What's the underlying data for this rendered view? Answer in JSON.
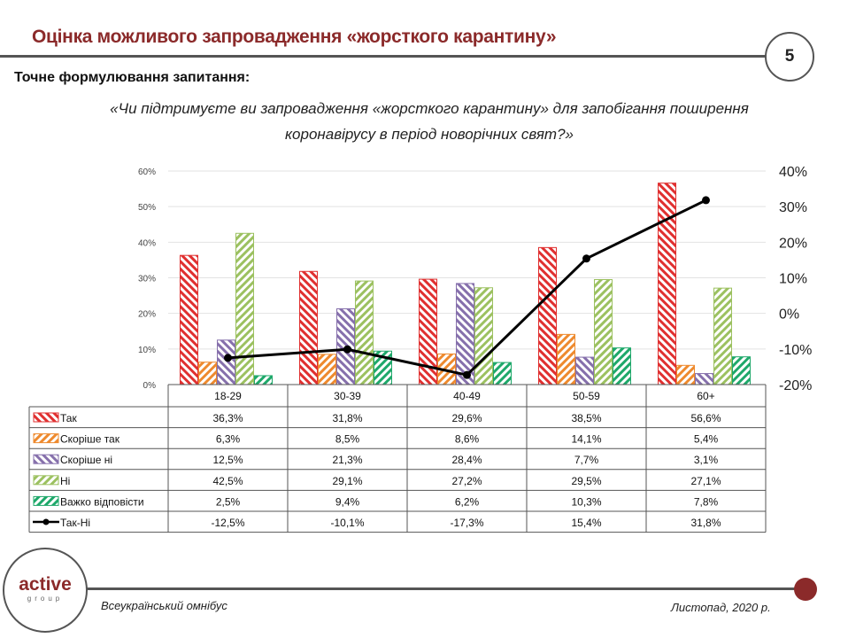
{
  "header": {
    "title": "Оцінка можливого запровадження «жорсткого карантину»",
    "page_number": "5"
  },
  "subtitle": "Точне формулювання запитання:",
  "question_line1": "«Чи підтримуєте ви запровадження «жорсткого карантину» для запобігання поширення",
  "question_line2": "коронавірусу в період новорічних свят?»",
  "footer": {
    "left": "Всеукраїнський омнібус",
    "right": "Листопад, 2020 р.",
    "logo_text": "active",
    "logo_sub": "group"
  },
  "chart_data": {
    "type": "bar",
    "categories": [
      "18-29",
      "30-39",
      "40-49",
      "50-59",
      "60+"
    ],
    "y_left": {
      "range": [
        0,
        60
      ],
      "ticks": [
        "0%",
        "10%",
        "20%",
        "30%",
        "40%",
        "50%",
        "60%"
      ]
    },
    "y_right": {
      "range": [
        -20,
        40
      ],
      "ticks": [
        "-20%",
        "-10%",
        "0%",
        "10%",
        "20%",
        "30%",
        "40%"
      ]
    },
    "grid": true,
    "series": [
      {
        "name": "Так",
        "type": "bar",
        "axis": "left",
        "color": "#e03030",
        "hatch": "back",
        "values": [
          36.3,
          31.8,
          29.6,
          38.5,
          56.6
        ],
        "labels": [
          "36,3%",
          "31,8%",
          "29,6%",
          "38,5%",
          "56,6%"
        ]
      },
      {
        "name": "Скоріше так",
        "type": "bar",
        "axis": "left",
        "color": "#ee8a2e",
        "hatch": "fwd",
        "values": [
          6.3,
          8.5,
          8.6,
          14.1,
          5.4
        ],
        "labels": [
          "6,3%",
          "8,5%",
          "8,6%",
          "14,1%",
          "5,4%"
        ]
      },
      {
        "name": "Скоріше ні",
        "type": "bar",
        "axis": "left",
        "color": "#8670ac",
        "hatch": "back",
        "values": [
          12.5,
          21.3,
          28.4,
          7.7,
          3.1
        ],
        "labels": [
          "12,5%",
          "21,3%",
          "28,4%",
          "7,7%",
          "3,1%"
        ]
      },
      {
        "name": "Ні",
        "type": "bar",
        "axis": "left",
        "color": "#9cc160",
        "hatch": "fwd",
        "values": [
          42.5,
          29.1,
          27.2,
          29.5,
          27.1
        ],
        "labels": [
          "42,5%",
          "29,1%",
          "27,2%",
          "29,5%",
          "27,1%"
        ]
      },
      {
        "name": "Важко відповісти",
        "type": "bar",
        "axis": "left",
        "color": "#1ea86a",
        "hatch": "fwd",
        "values": [
          2.5,
          9.4,
          6.2,
          10.3,
          7.8
        ],
        "labels": [
          "2,5%",
          "9,4%",
          "6,2%",
          "10,3%",
          "7,8%"
        ]
      },
      {
        "name": "Так-Ні",
        "type": "line",
        "axis": "right",
        "color": "#000000",
        "values": [
          -12.5,
          -10.1,
          -17.3,
          15.4,
          31.8
        ],
        "labels": [
          "-12,5%",
          "-10,1%",
          "-17,3%",
          "15,4%",
          "31,8%"
        ]
      }
    ]
  }
}
